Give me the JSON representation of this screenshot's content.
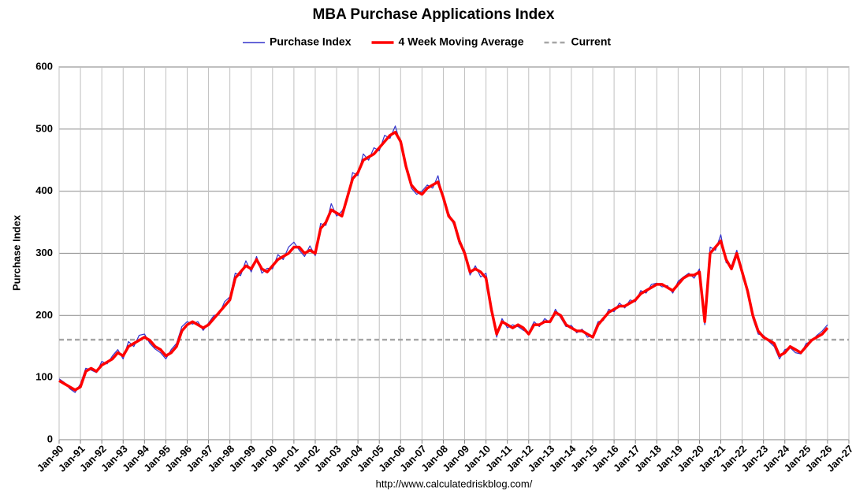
{
  "chart_data": {
    "type": "line",
    "title": "MBA Purchase Applications Index",
    "y_label": "Purchase Index",
    "source": "http://www.calculatedriskblog.com/",
    "ylim": [
      0,
      600
    ],
    "yticks": [
      0,
      100,
      200,
      300,
      400,
      500,
      600
    ],
    "xlim": [
      "Jan-90",
      "Jan-27"
    ],
    "xticks": [
      "Jan-90",
      "Jan-91",
      "Jan-92",
      "Jan-93",
      "Jan-94",
      "Jan-95",
      "Jan-96",
      "Jan-97",
      "Jan-98",
      "Jan-99",
      "Jan-00",
      "Jan-01",
      "Jan-02",
      "Jan-03",
      "Jan-04",
      "Jan-05",
      "Jan-06",
      "Jan-07",
      "Jan-08",
      "Jan-09",
      "Jan-10",
      "Jan-11",
      "Jan-12",
      "Jan-13",
      "Jan-14",
      "Jan-15",
      "Jan-16",
      "Jan-17",
      "Jan-18",
      "Jan-19",
      "Jan-20",
      "Jan-21",
      "Jan-22",
      "Jan-23",
      "Jan-24",
      "Jan-25",
      "Jan-26",
      "Jan-27"
    ],
    "grid": true,
    "legend": "top",
    "x": [
      "Jan-90",
      "Apr-90",
      "Jul-90",
      "Oct-90",
      "Jan-91",
      "Apr-91",
      "Jul-91",
      "Oct-91",
      "Jan-92",
      "Apr-92",
      "Jul-92",
      "Oct-92",
      "Jan-93",
      "Apr-93",
      "Jul-93",
      "Oct-93",
      "Jan-94",
      "Apr-94",
      "Jul-94",
      "Oct-94",
      "Jan-95",
      "Apr-95",
      "Jul-95",
      "Oct-95",
      "Jan-96",
      "Apr-96",
      "Jul-96",
      "Oct-96",
      "Jan-97",
      "Apr-97",
      "Jul-97",
      "Oct-97",
      "Jan-98",
      "Apr-98",
      "Jul-98",
      "Oct-98",
      "Jan-99",
      "Apr-99",
      "Jul-99",
      "Oct-99",
      "Jan-00",
      "Apr-00",
      "Jul-00",
      "Oct-00",
      "Jan-01",
      "Apr-01",
      "Jul-01",
      "Oct-01",
      "Jan-02",
      "Apr-02",
      "Jul-02",
      "Oct-02",
      "Jan-03",
      "Apr-03",
      "Jul-03",
      "Oct-03",
      "Jan-04",
      "Apr-04",
      "Jul-04",
      "Oct-04",
      "Jan-05",
      "Apr-05",
      "Jul-05",
      "Oct-05",
      "Jan-06",
      "Apr-06",
      "Jul-06",
      "Oct-06",
      "Jan-07",
      "Apr-07",
      "Jul-07",
      "Oct-07",
      "Jan-08",
      "Apr-08",
      "Jul-08",
      "Oct-08",
      "Jan-09",
      "Apr-09",
      "Jul-09",
      "Oct-09",
      "Jan-10",
      "Apr-10",
      "Jul-10",
      "Oct-10",
      "Jan-11",
      "Apr-11",
      "Jul-11",
      "Oct-11",
      "Jan-12",
      "Apr-12",
      "Jul-12",
      "Oct-12",
      "Jan-13",
      "Apr-13",
      "Jul-13",
      "Oct-13",
      "Jan-14",
      "Apr-14",
      "Jul-14",
      "Oct-14",
      "Jan-15",
      "Apr-15",
      "Jul-15",
      "Oct-15",
      "Jan-16",
      "Apr-16",
      "Jul-16",
      "Oct-16",
      "Jan-17",
      "Apr-17",
      "Jul-17",
      "Oct-17",
      "Jan-18",
      "Apr-18",
      "Jul-18",
      "Oct-18",
      "Jan-19",
      "Apr-19",
      "Jul-19",
      "Oct-19",
      "Jan-20",
      "Apr-20",
      "Jul-20",
      "Oct-20",
      "Jan-21",
      "Apr-21",
      "Jul-21",
      "Oct-21",
      "Jan-22",
      "Apr-22",
      "Jul-22",
      "Oct-22",
      "Jan-23",
      "Apr-23",
      "Jul-23",
      "Oct-23",
      "Jan-24",
      "Apr-24",
      "Jul-24",
      "Oct-24",
      "Jan-25",
      "Apr-25",
      "Jul-25",
      "Oct-25",
      "Jan-26"
    ],
    "series": [
      {
        "name": "Purchase Index",
        "color": "#3333cc",
        "width": 1.2,
        "values": [
          98,
          92,
          82,
          76,
          90,
          115,
          112,
          108,
          126,
          122,
          135,
          145,
          130,
          158,
          150,
          168,
          170,
          155,
          146,
          140,
          130,
          145,
          155,
          182,
          190,
          186,
          190,
          176,
          188,
          200,
          202,
          222,
          230,
          268,
          264,
          288,
          270,
          295,
          268,
          276,
          275,
          298,
          290,
          310,
          318,
          305,
          295,
          312,
          296,
          348,
          345,
          380,
          360,
          368,
          385,
          430,
          425,
          460,
          450,
          470,
          465,
          490,
          485,
          505,
          475,
          445,
          405,
          395,
          400,
          410,
          405,
          425,
          385,
          365,
          345,
          315,
          305,
          265,
          280,
          262,
          268,
          215,
          165,
          195,
          180,
          185,
          182,
          176,
          172,
          190,
          182,
          195,
          188,
          210,
          196,
          182,
          184,
          172,
          178,
          165,
          168,
          190,
          192,
          210,
          206,
          220,
          212,
          225,
          222,
          240,
          236,
          250,
          252,
          246,
          248,
          236,
          255,
          262,
          268,
          260,
          275,
          185,
          310,
          305,
          330,
          285,
          280,
          305,
          265,
          245,
          195,
          170,
          168,
          158,
          150,
          130,
          145,
          148,
          140,
          138,
          155,
          158,
          168,
          175,
          185
        ]
      },
      {
        "name": "4 Week Moving Average",
        "color": "#ff0000",
        "width": 3.5,
        "values": [
          95,
          90,
          85,
          80,
          85,
          110,
          115,
          110,
          120,
          125,
          130,
          140,
          135,
          150,
          155,
          160,
          165,
          160,
          150,
          145,
          135,
          140,
          150,
          175,
          185,
          190,
          185,
          180,
          185,
          195,
          205,
          215,
          225,
          260,
          270,
          280,
          275,
          290,
          275,
          270,
          280,
          290,
          295,
          300,
          310,
          310,
          300,
          305,
          300,
          340,
          350,
          370,
          365,
          360,
          390,
          420,
          430,
          450,
          455,
          460,
          470,
          480,
          490,
          495,
          480,
          440,
          410,
          400,
          395,
          405,
          410,
          415,
          390,
          360,
          350,
          320,
          300,
          270,
          275,
          270,
          260,
          210,
          170,
          190,
          185,
          180,
          185,
          180,
          170,
          185,
          185,
          190,
          190,
          205,
          200,
          185,
          180,
          175,
          175,
          170,
          165,
          185,
          195,
          205,
          210,
          215,
          215,
          220,
          225,
          235,
          240,
          245,
          250,
          250,
          245,
          240,
          250,
          260,
          265,
          265,
          270,
          190,
          300,
          310,
          320,
          290,
          275,
          300,
          270,
          240,
          200,
          175,
          165,
          160,
          155,
          135,
          140,
          150,
          145,
          140,
          150,
          160,
          165,
          170,
          180
        ]
      }
    ],
    "current": {
      "name": "Current",
      "value": 161,
      "color": "#a6a6a6"
    }
  }
}
